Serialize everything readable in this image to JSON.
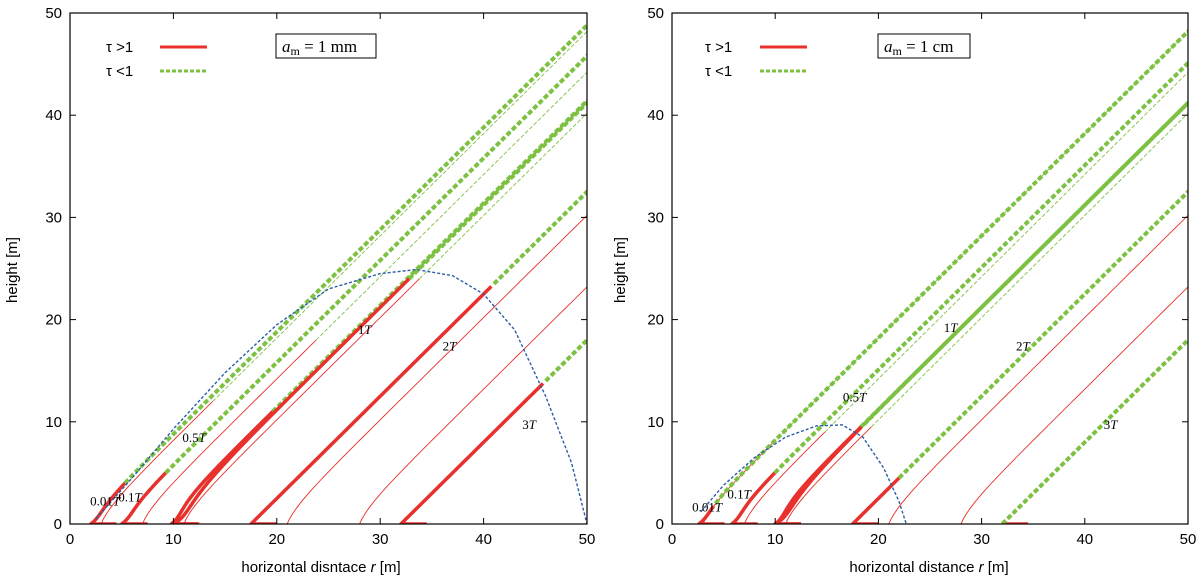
{
  "colors": {
    "opaque": "#e8302c",
    "transparent": "#7dc142",
    "boundary": "#2a5ea8"
  },
  "chart_data": [
    {
      "type": "line",
      "title": "a_m = 1 mm",
      "title_parts": {
        "italic": "a",
        "sub": "m",
        "rest": " = 1 mm"
      },
      "xlabel": "horizontal disntace r [m]",
      "xlabel_parts": {
        "pre": "horizontal disntace ",
        "italic": "r",
        "post": " [m]"
      },
      "ylabel": "height [m]",
      "xlim": [
        0,
        50
      ],
      "ylim": [
        0,
        50
      ],
      "xticks": [
        "0",
        "10",
        "20",
        "30",
        "40",
        "50"
      ],
      "yticks": [
        "0",
        "10",
        "20",
        "30",
        "40",
        "50"
      ],
      "legend": [
        {
          "label": "τ >1",
          "style": "solid"
        },
        {
          "label": "τ <1",
          "style": "dashed"
        }
      ],
      "boundary": {
        "name": "optical depth unity boundary",
        "x": [
          2.5,
          6,
          10,
          15,
          20,
          25,
          30,
          33.5,
          37,
          40,
          43,
          46,
          48.5,
          50
        ],
        "y": [
          0.5,
          4.5,
          9.3,
          14.8,
          19.5,
          23,
          24.5,
          24.9,
          24.3,
          22.5,
          19,
          12.5,
          6,
          0
        ]
      },
      "series": [
        {
          "name": "0.01T",
          "label_x": 3.4,
          "label_y": 1.8,
          "x0": 2.0,
          "xmin": 1.2,
          "k": 0.25,
          "y_switch": 4.0,
          "y_end": 50
        },
        {
          "name": "0.1T",
          "label_x": 5.8,
          "label_y": 2.2,
          "x0": 5.0,
          "xmin": 4.2,
          "k": 0.25,
          "y_switch": 5.0,
          "y_end": 50
        },
        {
          "name": "0.5T",
          "label_x": 12.0,
          "label_y": 8.0,
          "x0": 9.8,
          "xmin": 8.6,
          "k": 0.5,
          "y_switch": 11.0,
          "y_end": 50
        },
        {
          "name": "1T",
          "label_x": 28.5,
          "label_y": 18.6,
          "x0": 10.0,
          "xmin": 8.8,
          "k": 1.5,
          "y_switch": 24.0,
          "y_end": 47.5
        },
        {
          "name": "2T",
          "label_x": 36.7,
          "label_y": 17.0,
          "x0": 17.5,
          "xmin": 17.5,
          "k": 0.0,
          "y_switch": 23.3,
          "y_end": 44.5
        },
        {
          "name": "3T",
          "label_x": 44.4,
          "label_y": 9.3,
          "x0": 32.0,
          "xmin": 32.0,
          "k": 0.0,
          "y_switch": 13.8,
          "y_end": 34.5
        }
      ],
      "thin_series": [
        {
          "x0": 3.0,
          "y_end": 12.0
        },
        {
          "x0": 7.0,
          "y_end": 18.0
        },
        {
          "x0": 11.0,
          "y_end": 24.0
        },
        {
          "x0": 21.0,
          "y_end": 35.0
        },
        {
          "x0": 28.0,
          "y_end": 35.0
        }
      ]
    },
    {
      "type": "line",
      "title": "a_m = 1 cm",
      "title_parts": {
        "italic": "a",
        "sub": "m",
        "rest": " = 1 cm"
      },
      "xlabel": "horizontal distance r [m]",
      "xlabel_parts": {
        "pre": "horizontal distance ",
        "italic": "r",
        "post": " [m]"
      },
      "ylabel": "height [m]",
      "xlim": [
        0,
        50
      ],
      "ylim": [
        0,
        50
      ],
      "xticks": [
        "0",
        "10",
        "20",
        "30",
        "40",
        "50"
      ],
      "yticks": [
        "0",
        "10",
        "20",
        "30",
        "40",
        "50"
      ],
      "legend": [
        {
          "label": "τ >1",
          "style": "solid"
        },
        {
          "label": "τ <1",
          "style": "dashed"
        }
      ],
      "boundary": {
        "name": "optical depth unity boundary",
        "x": [
          2.8,
          5,
          8,
          11,
          14,
          16.5,
          18.5,
          20.5,
          22,
          22.7
        ],
        "y": [
          1.2,
          3.8,
          6.5,
          8.5,
          9.6,
          9.7,
          8.5,
          5.5,
          2.2,
          0
        ]
      },
      "series": [
        {
          "name": "0.01T",
          "label_x": 3.4,
          "label_y": 1.2,
          "x0": 2.6,
          "xmin": 1.8,
          "k": 0.25,
          "y_switch": 1.8,
          "y_end": 50
        },
        {
          "name": "0.1T",
          "label_x": 6.5,
          "label_y": 2.5,
          "x0": 5.8,
          "xmin": 4.9,
          "k": 0.25,
          "y_switch": 5.0,
          "y_end": 50
        },
        {
          "name": "0.5T",
          "label_x": 17.7,
          "label_y": 12.0,
          "x0": 10.0,
          "xmin": 8.8,
          "k": 0.5,
          "y_switch": 9.5,
          "y_end": 50
        },
        {
          "name": "1T",
          "label_x": 27.0,
          "label_y": 18.8,
          "x0": 10.0,
          "xmin": 8.8,
          "k": 1.5,
          "y_switch": 9.6,
          "y_end": 47.5
        },
        {
          "name": "2T",
          "label_x": 34.0,
          "label_y": 17.0,
          "x0": 17.5,
          "xmin": 17.5,
          "k": 0.0,
          "y_switch": 4.5,
          "y_end": 44.5
        },
        {
          "name": "3T",
          "label_x": 42.5,
          "label_y": 9.3,
          "x0": 32.0,
          "xmin": 32.0,
          "k": 0.0,
          "y_switch": 0,
          "y_end": 34.5
        }
      ],
      "thin_series": [
        {
          "x0": 3.0,
          "y_end": 8.0
        },
        {
          "x0": 7.0,
          "y_end": 9.0
        },
        {
          "x0": 11.0,
          "y_end": 9.5
        },
        {
          "x0": 21.0,
          "y_end": 35.0
        },
        {
          "x0": 28.0,
          "y_end": 35.0
        }
      ]
    }
  ]
}
